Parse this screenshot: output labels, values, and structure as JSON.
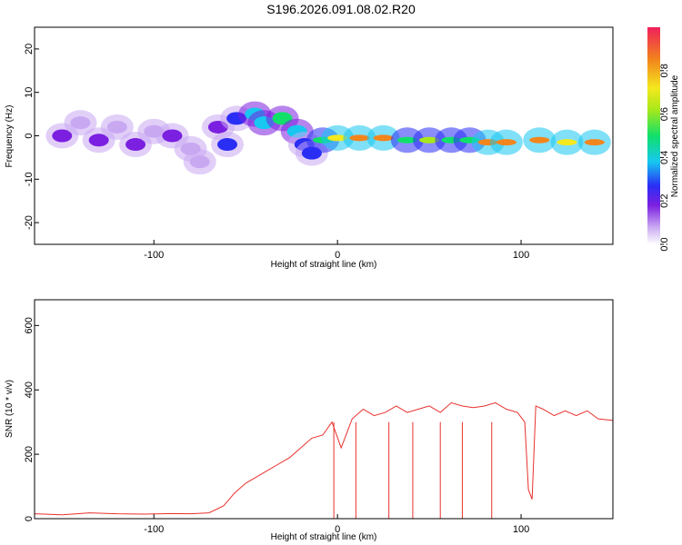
{
  "title": "S196.2026.091.08.02.R20",
  "chart_data": [
    {
      "type": "heatmap",
      "name": "spectrogram",
      "xlabel": "Height of straight line (km)",
      "ylabel": "Frequency (Hz)",
      "xlim": [
        -165,
        150
      ],
      "ylim": [
        -25,
        25
      ],
      "xticks": [
        -100,
        0,
        100
      ],
      "yticks": [
        -20,
        -10,
        0,
        10,
        20
      ],
      "colorbar": {
        "label": "Normalized spectral amplitude",
        "range": [
          0,
          1
        ],
        "ticks": [
          "0.0",
          "0.2",
          "0.4",
          "0.6",
          "0.8"
        ]
      },
      "blobs": [
        {
          "x": -150,
          "y": 0,
          "v": 0.18
        },
        {
          "x": -140,
          "y": 3,
          "v": 0.15
        },
        {
          "x": -130,
          "y": -1,
          "v": 0.2
        },
        {
          "x": -120,
          "y": 2,
          "v": 0.17
        },
        {
          "x": -110,
          "y": -2,
          "v": 0.19
        },
        {
          "x": -100,
          "y": 1,
          "v": 0.16
        },
        {
          "x": -90,
          "y": 0,
          "v": 0.18
        },
        {
          "x": -80,
          "y": -3,
          "v": 0.17
        },
        {
          "x": -75,
          "y": -6,
          "v": 0.15
        },
        {
          "x": -65,
          "y": 2,
          "v": 0.25
        },
        {
          "x": -60,
          "y": -2,
          "v": 0.3
        },
        {
          "x": -55,
          "y": 4,
          "v": 0.35
        },
        {
          "x": -45,
          "y": 5,
          "v": 0.4
        },
        {
          "x": -40,
          "y": 3,
          "v": 0.45
        },
        {
          "x": -30,
          "y": 4,
          "v": 0.5
        },
        {
          "x": -22,
          "y": 1,
          "v": 0.45
        },
        {
          "x": -18,
          "y": -2,
          "v": 0.35
        },
        {
          "x": -14,
          "y": -4,
          "v": 0.3
        },
        {
          "x": -8,
          "y": -1,
          "v": 0.6
        },
        {
          "x": 0,
          "y": -0.5,
          "v": 0.8
        },
        {
          "x": 12,
          "y": -0.5,
          "v": 0.95
        },
        {
          "x": 25,
          "y": -0.5,
          "v": 0.95
        },
        {
          "x": 38,
          "y": -1,
          "v": 0.6
        },
        {
          "x": 50,
          "y": -1,
          "v": 0.65
        },
        {
          "x": 62,
          "y": -1,
          "v": 0.55
        },
        {
          "x": 72,
          "y": -1,
          "v": 0.6
        },
        {
          "x": 82,
          "y": -1.5,
          "v": 0.9
        },
        {
          "x": 92,
          "y": -1.5,
          "v": 0.9
        },
        {
          "x": 110,
          "y": -1,
          "v": 0.95
        },
        {
          "x": 125,
          "y": -1.5,
          "v": 0.8
        },
        {
          "x": 140,
          "y": -1.5,
          "v": 0.95
        }
      ]
    },
    {
      "type": "line",
      "name": "snr",
      "xlabel": "Height of straight line (km)",
      "ylabel": "SNR (10 * v/v)",
      "xlim": [
        -165,
        150
      ],
      "ylim": [
        0,
        680
      ],
      "xticks": [
        -100,
        0,
        100
      ],
      "yticks": [
        0,
        200,
        400,
        600
      ],
      "color": "#e8312d",
      "x": [
        -165,
        -150,
        -135,
        -120,
        -105,
        -90,
        -80,
        -70,
        -62,
        -56,
        -50,
        -44,
        -38,
        -32,
        -26,
        -20,
        -14,
        -8,
        -3,
        2,
        8,
        14,
        20,
        26,
        32,
        38,
        44,
        50,
        56,
        62,
        68,
        74,
        80,
        86,
        92,
        98,
        102,
        104,
        106,
        108,
        112,
        118,
        124,
        130,
        136,
        142,
        150
      ],
      "y": [
        15,
        12,
        18,
        15,
        14,
        16,
        15,
        18,
        40,
        80,
        110,
        130,
        150,
        170,
        190,
        220,
        250,
        260,
        300,
        220,
        310,
        340,
        320,
        330,
        350,
        330,
        340,
        350,
        330,
        360,
        350,
        345,
        350,
        360,
        340,
        330,
        300,
        90,
        60,
        350,
        340,
        320,
        335,
        320,
        335,
        310,
        305
      ],
      "dropouts": [
        -2,
        10,
        28,
        41,
        56,
        68,
        84
      ]
    }
  ]
}
